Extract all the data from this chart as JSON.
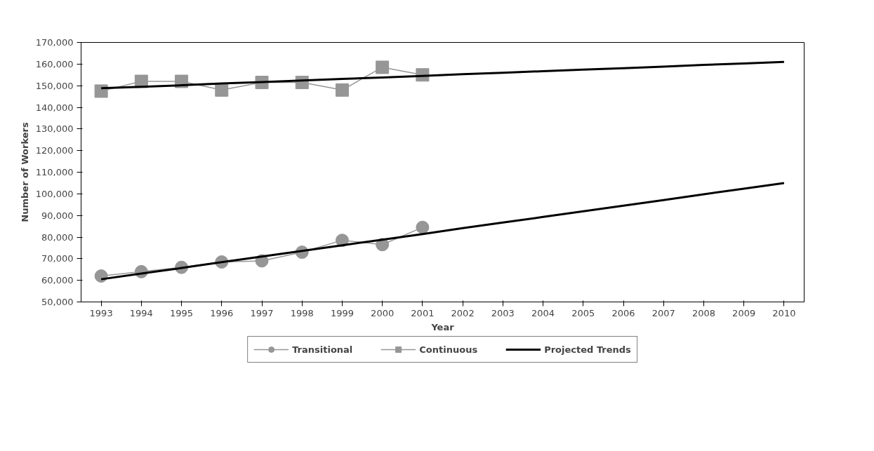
{
  "chart_data": {
    "type": "line",
    "xlabel": "Year",
    "ylabel": "Number of Workers",
    "categories": [
      "1993",
      "1994",
      "1995",
      "1996",
      "1997",
      "1998",
      "1999",
      "2000",
      "2001",
      "2002",
      "2003",
      "2004",
      "2005",
      "2006",
      "2007",
      "2008",
      "2009",
      "2010"
    ],
    "ylim": [
      50000,
      170000
    ],
    "yticks": [
      {
        "value": 50000,
        "label": "50,000"
      },
      {
        "value": 60000,
        "label": "60,000"
      },
      {
        "value": 70000,
        "label": "70,000"
      },
      {
        "value": 80000,
        "label": "80,000"
      },
      {
        "value": 90000,
        "label": "90,000"
      },
      {
        "value": 100000,
        "label": "100,000"
      },
      {
        "value": 110000,
        "label": "110,000"
      },
      {
        "value": 120000,
        "label": "120,000"
      },
      {
        "value": 130000,
        "label": "130,000"
      },
      {
        "value": 140000,
        "label": "140,000"
      },
      {
        "value": 150000,
        "label": "150,000"
      },
      {
        "value": 160000,
        "label": "160,000"
      },
      {
        "value": 170000,
        "label": "170,000"
      }
    ],
    "grid": false,
    "legend": "bottom",
    "series": [
      {
        "name": "Transitional",
        "color": "#969696",
        "marker": "circle",
        "values": [
          62000,
          64000,
          66000,
          68500,
          69000,
          73000,
          78500,
          76500,
          84500,
          null,
          null,
          null,
          null,
          null,
          null,
          null,
          null,
          null
        ]
      },
      {
        "name": "Continuous",
        "color": "#969696",
        "marker": "square",
        "values": [
          147500,
          152000,
          152000,
          148000,
          151500,
          151500,
          148000,
          158500,
          155000,
          null,
          null,
          null,
          null,
          null,
          null,
          null,
          null,
          null
        ]
      },
      {
        "name": "Projected Trends",
        "color": "#000000",
        "marker": "none",
        "values": [
          60500,
          63100,
          65700,
          68400,
          71000,
          73600,
          76200,
          78800,
          81400,
          84100,
          86700,
          89300,
          91900,
          94500,
          97100,
          99800,
          102400,
          105000
        ]
      },
      {
        "color": "#000000",
        "marker": "none",
        "values": [
          148800,
          149500,
          150200,
          151000,
          151700,
          152400,
          153100,
          153800,
          154500,
          155300,
          156000,
          156700,
          157400,
          158100,
          158800,
          159600,
          160300,
          161000
        ]
      }
    ]
  }
}
